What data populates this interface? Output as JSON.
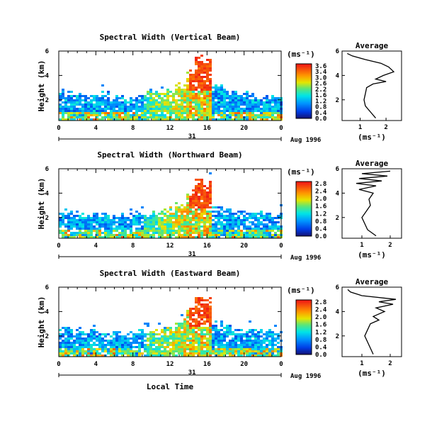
{
  "chart_data": [
    {
      "type": "heatmap",
      "title": "Spectral Width (Vertical Beam)",
      "ylabel": "Height (km)",
      "xlabel": "",
      "x_ticks": [
        "0",
        "4",
        "8",
        "12",
        "16",
        "20",
        "0"
      ],
      "y_ticks": [
        "2",
        "4",
        "6"
      ],
      "xlim": [
        0,
        24
      ],
      "ylim": [
        0.3,
        6
      ],
      "date_day": "31",
      "date_label": "Aug 1996",
      "colorbar": {
        "unit": "(ms⁻¹)",
        "ticks": [
          "3.6",
          "3.4",
          "3.0",
          "2.6",
          "2.2",
          "1.6",
          "1.2",
          "0.8",
          "0.4",
          "0.0"
        ]
      },
      "average_profile": {
        "title": "Average",
        "xlabel": "(ms⁻¹)",
        "x_ticks": [
          "1",
          "2"
        ],
        "y_ticks": [
          "2",
          "4",
          "6"
        ],
        "xlim": [
          0.3,
          2.6
        ],
        "ylim": [
          0.3,
          6
        ],
        "height": [
          0.5,
          1.0,
          1.5,
          2.0,
          2.5,
          3.0,
          3.3,
          3.5,
          3.7,
          4.0,
          4.3,
          4.5,
          4.7,
          5.0,
          5.3,
          5.6,
          5.8
        ],
        "width": [
          1.6,
          1.4,
          1.2,
          1.15,
          1.2,
          1.25,
          1.5,
          2.0,
          1.6,
          1.9,
          2.3,
          2.2,
          2.1,
          1.8,
          1.2,
          0.7,
          0.5
        ]
      },
      "heatmap": {
        "strong_burst_time": [
          14,
          16.5
        ],
        "strong_burst_top": 5.6,
        "baseline_top": [
          3.0,
          2.8,
          2.6,
          2.5,
          2.7,
          2.6,
          2.4,
          2.3,
          2.4,
          2.6,
          2.6,
          2.7,
          2.8,
          3.4,
          4.5,
          5.6,
          5.3,
          3.4,
          2.9,
          2.7,
          2.6,
          2.5,
          2.5,
          2.4,
          2.4
        ]
      }
    },
    {
      "type": "heatmap",
      "title": "Spectral Width (Northward Beam)",
      "ylabel": "Height (km)",
      "xlabel": "",
      "x_ticks": [
        "0",
        "4",
        "8",
        "12",
        "16",
        "20",
        "0"
      ],
      "y_ticks": [
        "2",
        "4",
        "6"
      ],
      "xlim": [
        0,
        24
      ],
      "ylim": [
        0.3,
        6
      ],
      "date_day": "31",
      "date_label": "Aug 1996",
      "colorbar": {
        "unit": "(ms⁻¹)",
        "ticks": [
          "2.8",
          "2.4",
          "2.0",
          "1.6",
          "1.2",
          "0.8",
          "0.4",
          "0.0"
        ]
      },
      "average_profile": {
        "title": "Average",
        "xlabel": "(ms⁻¹)",
        "x_ticks": [
          "1",
          "2"
        ],
        "y_ticks": [
          "2",
          "4",
          "6"
        ],
        "xlim": [
          0.3,
          2.4
        ],
        "ylim": [
          0.3,
          6
        ],
        "height": [
          0.5,
          1.0,
          1.5,
          2.0,
          2.5,
          3.0,
          3.5,
          4.0,
          4.3,
          4.6,
          4.8,
          5.0,
          5.2,
          5.4,
          5.6,
          5.8
        ],
        "width": [
          1.5,
          1.2,
          1.1,
          1.0,
          1.15,
          1.3,
          1.25,
          1.4,
          0.9,
          1.5,
          0.8,
          1.7,
          0.9,
          1.9,
          1.0,
          2.0
        ]
      },
      "heatmap": {
        "strong_burst_time": [
          14,
          16.5
        ],
        "strong_burst_top": 5.3,
        "baseline_top": [
          2.7,
          2.6,
          2.5,
          2.5,
          2.4,
          2.3,
          2.3,
          2.2,
          2.3,
          2.4,
          2.5,
          2.6,
          2.8,
          3.2,
          4.2,
          5.3,
          5.0,
          3.0,
          2.8,
          2.6,
          2.5,
          2.4,
          2.4,
          2.3,
          2.3
        ]
      }
    },
    {
      "type": "heatmap",
      "title": "Spectral Width (Eastward Beam)",
      "ylabel": "Height (km)",
      "xlabel": "Local Time",
      "x_ticks": [
        "0",
        "4",
        "8",
        "12",
        "16",
        "20",
        "0"
      ],
      "y_ticks": [
        "2",
        "4",
        "6"
      ],
      "xlim": [
        0,
        24
      ],
      "ylim": [
        0.3,
        6
      ],
      "date_day": "31",
      "date_label": "Aug 1996",
      "colorbar": {
        "unit": "(ms⁻¹)",
        "ticks": [
          "2.8",
          "2.4",
          "2.0",
          "1.6",
          "1.2",
          "0.8",
          "0.4",
          "0.0"
        ]
      },
      "average_profile": {
        "title": "Average",
        "xlabel": "(ms⁻¹)",
        "x_ticks": [
          "1",
          "2"
        ],
        "y_ticks": [
          "2",
          "4",
          "6"
        ],
        "xlim": [
          0.3,
          2.4
        ],
        "ylim": [
          0.3,
          6
        ],
        "height": [
          0.5,
          1.0,
          1.5,
          2.0,
          2.5,
          3.0,
          3.3,
          3.6,
          4.0,
          4.3,
          4.6,
          4.8,
          5.0,
          5.3,
          5.6,
          5.8
        ],
        "width": [
          1.4,
          1.3,
          1.2,
          1.1,
          1.2,
          1.3,
          1.6,
          1.4,
          1.8,
          1.5,
          2.1,
          1.6,
          2.2,
          1.0,
          0.6,
          0.5
        ]
      },
      "heatmap": {
        "strong_burst_time": [
          14,
          16.5
        ],
        "strong_burst_top": 5.4,
        "baseline_top": [
          2.8,
          2.7,
          2.6,
          2.5,
          2.5,
          2.4,
          2.4,
          2.3,
          2.4,
          2.5,
          2.6,
          2.7,
          2.9,
          3.3,
          4.3,
          5.4,
          5.1,
          3.2,
          2.9,
          2.7,
          2.6,
          2.5,
          2.5,
          2.4,
          2.4
        ]
      }
    }
  ]
}
